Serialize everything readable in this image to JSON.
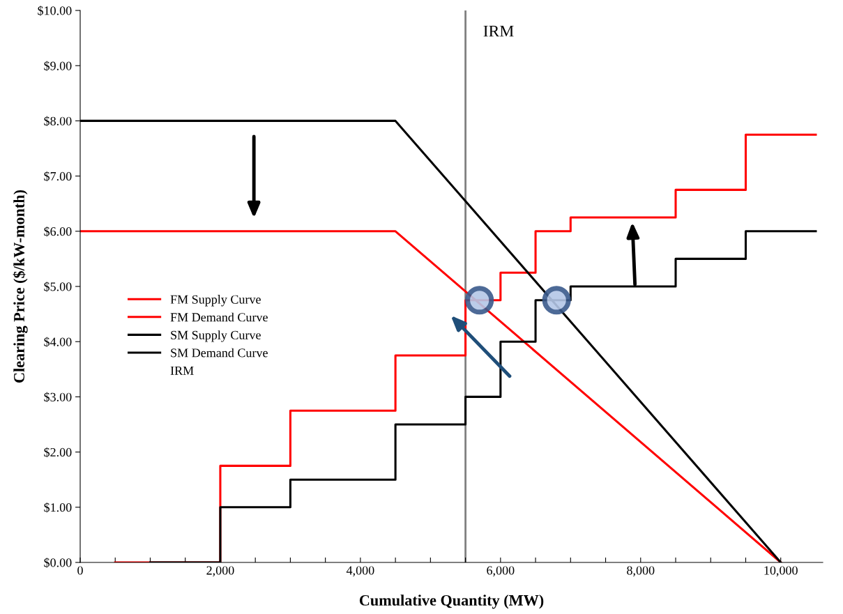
{
  "chart_data": {
    "type": "step",
    "xlabel": "Cumulative Quantity (MW)",
    "ylabel": "Clearing Price ($/kW-month)",
    "xlim": [
      0,
      10600
    ],
    "ylim": [
      0,
      10
    ],
    "xticks": [
      0,
      {
        "value": 500,
        "label": null
      },
      {
        "value": 1000,
        "label": null
      },
      {
        "value": 1500,
        "label": null
      },
      {
        "value": 2000,
        "label": "2,000"
      },
      {
        "value": 2500,
        "label": null
      },
      {
        "value": 3000,
        "label": null
      },
      {
        "value": 3500,
        "label": null
      },
      {
        "value": 4000,
        "label": "4,000"
      },
      {
        "value": 4500,
        "label": null
      },
      {
        "value": 5000,
        "label": null
      },
      {
        "value": 5500,
        "label": null
      },
      {
        "value": 6000,
        "label": "6,000"
      },
      {
        "value": 6500,
        "label": null
      },
      {
        "value": 7000,
        "label": null
      },
      {
        "value": 7500,
        "label": null
      },
      {
        "value": 8000,
        "label": "8,000"
      },
      {
        "value": 8500,
        "label": null
      },
      {
        "value": 9000,
        "label": null
      },
      {
        "value": 9500,
        "label": null
      },
      {
        "value": 10000,
        "label": "10,000"
      }
    ],
    "yticks": [
      {
        "value": 0,
        "label": "$0.00"
      },
      {
        "value": 1,
        "label": "$1.00"
      },
      {
        "value": 2,
        "label": "$2.00"
      },
      {
        "value": 3,
        "label": "$3.00"
      },
      {
        "value": 4,
        "label": "$4.00"
      },
      {
        "value": 5,
        "label": "$5.00"
      },
      {
        "value": 6,
        "label": "$6.00"
      },
      {
        "value": 7,
        "label": "$7.00"
      },
      {
        "value": 8,
        "label": "$8.00"
      },
      {
        "value": 9,
        "label": "$9.00"
      },
      {
        "value": 10,
        "label": "$10.00"
      }
    ],
    "grid": false,
    "legend": "center left",
    "marker": "none",
    "line_style": "solid",
    "series": [
      {
        "name": "FM Supply Curve",
        "color": "#ff0000",
        "x": [
          500,
          2000,
          3000,
          4500,
          5500,
          6000,
          6500,
          7000,
          8500,
          9500,
          10500
        ],
        "values": [
          0,
          1.75,
          2.75,
          3.75,
          4.75,
          5.25,
          6.0,
          6.25,
          6.75,
          7.75,
          7.75
        ]
      },
      {
        "name": "FM Demand Curve",
        "color": "#ff0000",
        "type": "line",
        "x": [
          0,
          4500,
          10000
        ],
        "values": [
          6,
          6,
          0
        ]
      },
      {
        "name": "SM Supply Curve",
        "color": "#000000",
        "x": [
          1000,
          2000,
          3000,
          4500,
          5500,
          6000,
          6500,
          7000,
          8500,
          9500,
          10500
        ],
        "values": [
          0,
          1.0,
          1.5,
          2.5,
          3.0,
          4.0,
          4.75,
          5.0,
          5.5,
          6.0,
          6.0
        ]
      },
      {
        "name": "SM Demand Curve",
        "color": "#000000",
        "type": "line",
        "x": [
          0,
          4500,
          10000
        ],
        "values": [
          8,
          8,
          0
        ]
      }
    ],
    "ref_lines": [
      {
        "axis": "x",
        "value": 5500,
        "label": "IRM",
        "color": "#808080"
      }
    ]
  }
}
